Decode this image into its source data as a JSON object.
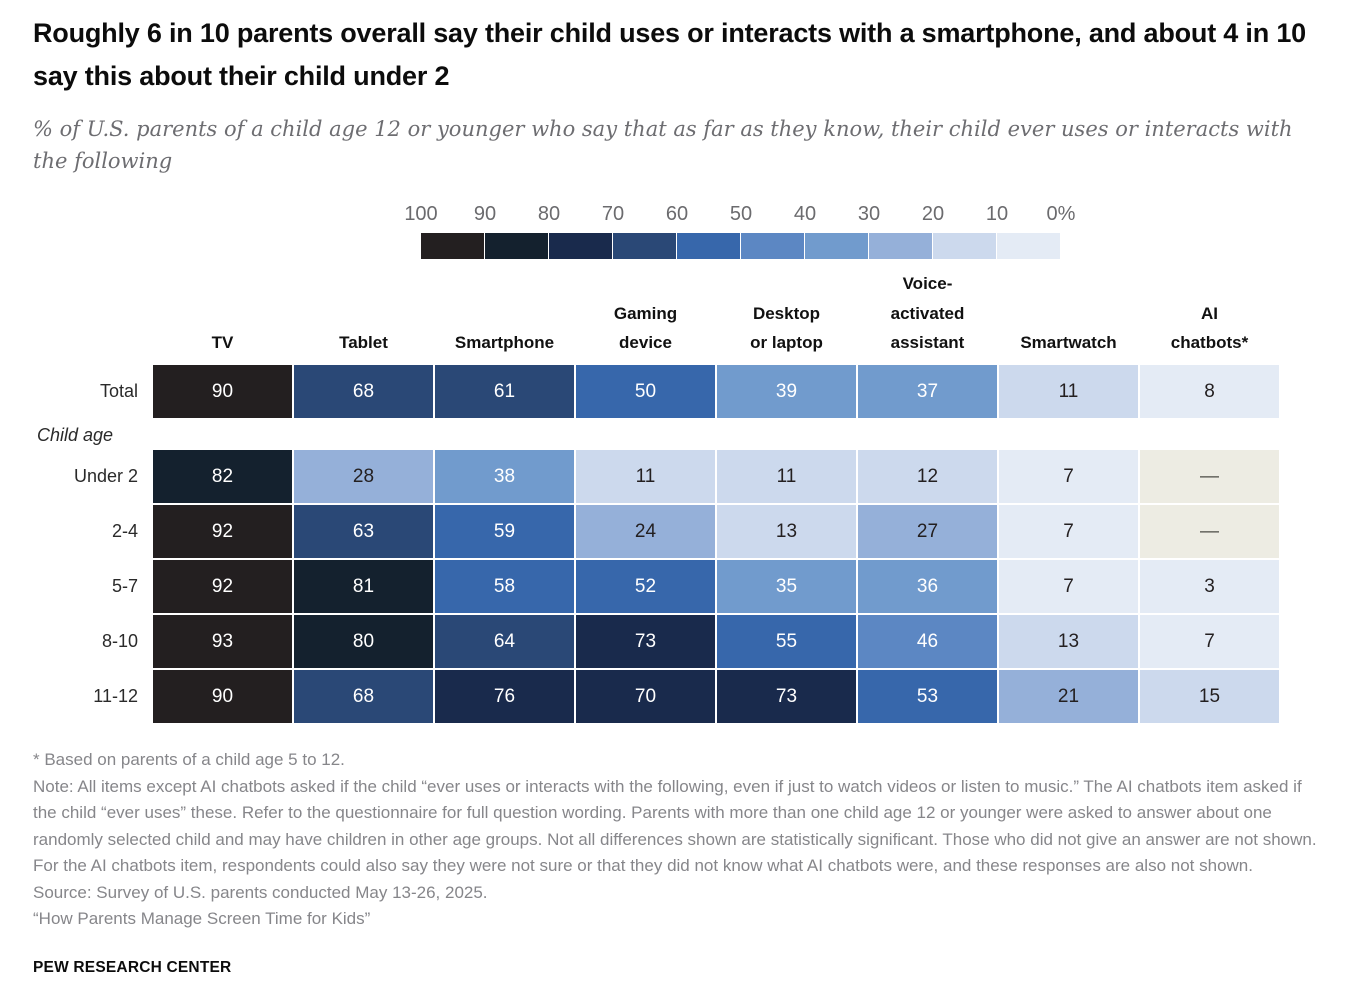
{
  "title": "Roughly 6 in 10 parents overall say their child uses or interacts with a smartphone, and about 4 in 10 say this about their child under 2",
  "subtitle": "% of U.S. parents of a child age 12 or younger who say that as far as they know, their child ever uses or interacts with the following",
  "chart_data": {
    "type": "heatmap",
    "unit": "%",
    "title": "Roughly 6 in 10 parents overall say their child uses or interacts with a smartphone, and about 4 in 10 say this about their child under 2",
    "columns": [
      "TV",
      "Tablet",
      "Smartphone",
      "Gaming\ndevice",
      "Desktop\nor laptop",
      "Voice-\nactivated\nassistant",
      "Smartwatch",
      "AI\nchatbots*"
    ],
    "group_label": "Child age",
    "no_data_symbol": "—",
    "rows": [
      {
        "label": "Total",
        "cells": [
          90,
          68,
          61,
          50,
          39,
          37,
          11,
          8
        ]
      },
      {
        "label": "Under 2",
        "cells": [
          82,
          28,
          38,
          11,
          11,
          12,
          7,
          "—"
        ]
      },
      {
        "label": "2-4",
        "cells": [
          92,
          63,
          59,
          24,
          13,
          27,
          7,
          "—"
        ]
      },
      {
        "label": "5-7",
        "cells": [
          92,
          81,
          58,
          52,
          35,
          36,
          7,
          3
        ]
      },
      {
        "label": "8-10",
        "cells": [
          93,
          80,
          64,
          73,
          55,
          46,
          13,
          7
        ]
      },
      {
        "label": "11-12",
        "cells": [
          90,
          68,
          76,
          70,
          73,
          53,
          21,
          15
        ]
      }
    ],
    "scale": {
      "tick_labels": [
        "100",
        "90",
        "80",
        "70",
        "60",
        "50",
        "40",
        "30",
        "20",
        "10",
        "0%"
      ],
      "colors_high_to_low": [
        "#231f20",
        "#14212e",
        "#192a4c",
        "#2a4876",
        "#3767ab",
        "#5c87c3",
        "#719bcd",
        "#95b0d9",
        "#ccd9ed",
        "#e4ebf5"
      ],
      "no_data_color": "#edece3",
      "no_data_text_color": "#4a4a45",
      "white_text_min_value": 30,
      "dark_text_color": "#231f20",
      "light_text_color": "#ffffff"
    }
  },
  "footnotes": {
    "asterisk": "* Based on parents of a child age 5 to 12.",
    "note": "Note: All items except AI chatbots asked if the child “ever uses or interacts with the following, even if just to watch videos or listen to music.” The AI chatbots item asked if the child “ever uses” these. Refer to the questionnaire for full question wording. Parents with more than one child age 12 or younger were asked to answer about one randomly selected child and may have children in other age groups. Not all differences shown are statistically significant. Those who did not give an answer are not shown. For the AI chatbots item, respondents could also say they were not sure or that they did not know what AI chatbots were, and these responses are also not shown.",
    "source": "Source: Survey of U.S. parents conducted May 13-26, 2025.",
    "report": "“How Parents Manage Screen Time for Kids”"
  },
  "branding": "PEW RESEARCH CENTER"
}
